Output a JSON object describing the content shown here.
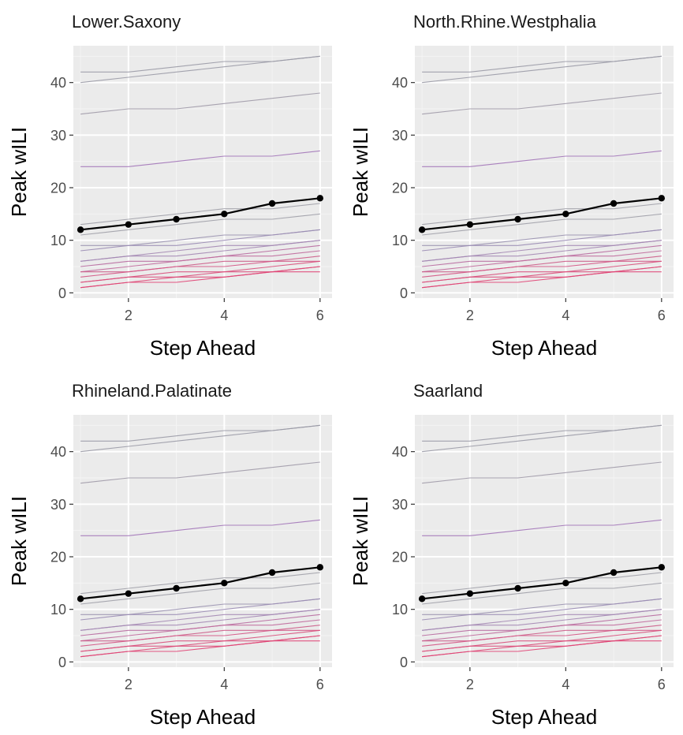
{
  "chart_data": {
    "type": "line",
    "layout": "facet-grid-2x2",
    "xlabel": "Step Ahead",
    "ylabel": "Peak wILI",
    "xlim": [
      0.85,
      6.25
    ],
    "ylim": [
      -1,
      47
    ],
    "x_ticks": [
      2,
      4,
      6
    ],
    "y_ticks": [
      0,
      10,
      20,
      30,
      40
    ],
    "x": [
      1,
      2,
      3,
      4,
      5,
      6
    ],
    "grid": true,
    "legend": "none",
    "colors": {
      "panel_bg": "#ebebeb",
      "grid_major": "#ffffff",
      "grid_minor": "#f4f4f4",
      "highlight": "#000000"
    },
    "background_series": [
      {
        "values": [
          42,
          42,
          43,
          44,
          44,
          45
        ],
        "color": "#9a9aa6"
      },
      {
        "values": [
          40,
          41,
          42,
          43,
          44,
          45
        ],
        "color": "#9a9aa6"
      },
      {
        "values": [
          34,
          35,
          35,
          36,
          37,
          38
        ],
        "color": "#a09aa8"
      },
      {
        "values": [
          24,
          24,
          25,
          26,
          26,
          27
        ],
        "color": "#a274b8"
      },
      {
        "values": [
          13,
          14,
          15,
          16,
          16,
          17
        ],
        "color": "#a0a0a8"
      },
      {
        "values": [
          11,
          12,
          13,
          14,
          14,
          15
        ],
        "color": "#a0a0a8"
      },
      {
        "values": [
          9,
          9,
          10,
          11,
          11,
          12
        ],
        "color": "#9a92b0"
      },
      {
        "values": [
          8,
          9,
          9,
          10,
          11,
          12
        ],
        "color": "#9a8cb4"
      },
      {
        "values": [
          6,
          7,
          8,
          9,
          9,
          10
        ],
        "color": "#a488b4"
      },
      {
        "values": [
          6,
          7,
          7,
          8,
          9,
          10
        ],
        "color": "#a488b4"
      },
      {
        "values": [
          5,
          6,
          6,
          7,
          8,
          9
        ],
        "color": "#b86aa0"
      },
      {
        "values": [
          4,
          5,
          6,
          7,
          7,
          8
        ],
        "color": "#c06a9c"
      },
      {
        "values": [
          4,
          4,
          5,
          6,
          6,
          7
        ],
        "color": "#cc5c88"
      },
      {
        "values": [
          3,
          4,
          5,
          5,
          6,
          6
        ],
        "color": "#d45484"
      },
      {
        "values": [
          2,
          3,
          4,
          4,
          5,
          6
        ],
        "color": "#d8507c"
      },
      {
        "values": [
          2,
          3,
          3,
          4,
          4,
          5
        ],
        "color": "#da4c7a"
      },
      {
        "values": [
          1,
          2,
          3,
          3,
          4,
          5
        ],
        "color": "#de4876"
      },
      {
        "values": [
          1,
          2,
          2,
          3,
          4,
          4
        ],
        "color": "#e04474"
      }
    ],
    "panels": [
      {
        "title": "Lower.Saxony",
        "highlight": [
          12,
          13,
          14,
          15,
          17,
          18
        ]
      },
      {
        "title": "North.Rhine.Westphalia",
        "highlight": [
          12,
          13,
          14,
          15,
          17,
          18
        ]
      },
      {
        "title": "Rhineland.Palatinate",
        "highlight": [
          12,
          13,
          14,
          15,
          17,
          18
        ]
      },
      {
        "title": "Saarland",
        "highlight": [
          12,
          13,
          14,
          15,
          17,
          18
        ]
      }
    ]
  }
}
